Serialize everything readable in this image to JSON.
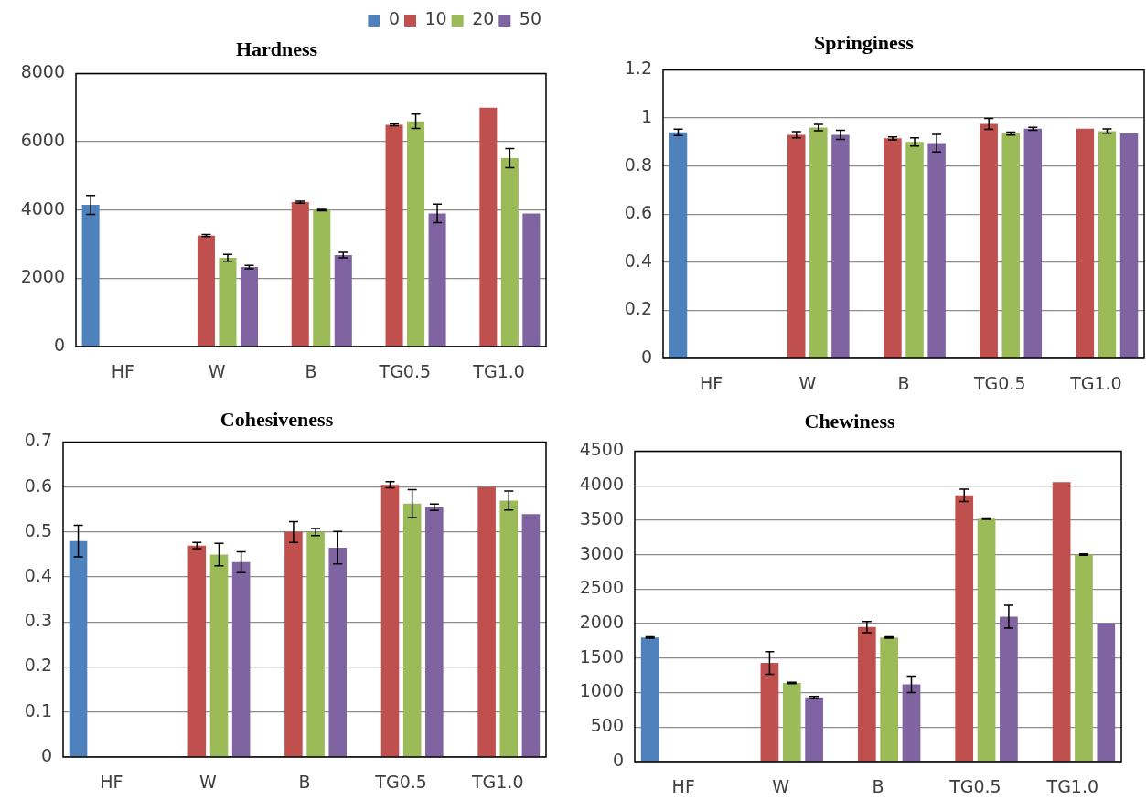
{
  "chart_data": [
    {
      "type": "bar",
      "title": "Hardness",
      "categories": [
        "HF",
        "W",
        "B",
        "TG0.5",
        "TG1.0"
      ],
      "series": [
        {
          "name": "0",
          "color": "#4f81bd",
          "values": [
            4150,
            null,
            null,
            null,
            null
          ],
          "errors": [
            280,
            null,
            null,
            null,
            null
          ]
        },
        {
          "name": "10",
          "color": "#c0504d",
          "values": [
            null,
            3250,
            4230,
            6500,
            7000
          ],
          "errors": [
            null,
            30,
            30,
            30,
            null
          ]
        },
        {
          "name": "20",
          "color": "#9bbb59",
          "values": [
            null,
            2600,
            4000,
            6600,
            5520
          ],
          "errors": [
            null,
            100,
            20,
            210,
            280
          ]
        },
        {
          "name": "50",
          "color": "#8064a2",
          "values": [
            null,
            2330,
            2680,
            3900,
            3900
          ],
          "errors": [
            null,
            50,
            80,
            270,
            null
          ]
        }
      ],
      "ylim": [
        0,
        8000
      ],
      "yticks": [
        0,
        2000,
        4000,
        6000,
        8000
      ],
      "grid": "y",
      "legend": "top right"
    },
    {
      "type": "bar",
      "title": "Springiness",
      "categories": [
        "HF",
        "W",
        "B",
        "TG0.5",
        "TG1.0"
      ],
      "series": [
        {
          "color": "#4f81bd",
          "values": [
            0.94,
            null,
            null,
            null,
            null
          ],
          "errors": [
            0.013,
            null,
            null,
            null,
            null
          ]
        },
        {
          "color": "#c0504d",
          "values": [
            null,
            0.93,
            0.915,
            0.975,
            0.955
          ],
          "errors": [
            null,
            0.013,
            0.006,
            0.023,
            null
          ]
        },
        {
          "color": "#9bbb59",
          "values": [
            null,
            0.96,
            0.9,
            0.935,
            0.945
          ],
          "errors": [
            null,
            0.013,
            0.017,
            0.006,
            0.009
          ]
        },
        {
          "color": "#8064a2",
          "values": [
            null,
            0.93,
            0.895,
            0.955,
            0.935
          ],
          "errors": [
            null,
            0.019,
            0.037,
            0.006,
            null
          ]
        }
      ],
      "ylim": [
        0,
        1.2
      ],
      "yticks": [
        0,
        0.2,
        0.4,
        0.6,
        0.8,
        1,
        1.2
      ],
      "grid": "y"
    },
    {
      "type": "bar",
      "title": "Cohesiveness",
      "categories": [
        "HF",
        "W",
        "B",
        "TG0.5",
        "TG1.0"
      ],
      "series": [
        {
          "color": "#4f81bd",
          "values": [
            0.48,
            null,
            null,
            null,
            null
          ],
          "errors": [
            0.035,
            null,
            null,
            null,
            null
          ]
        },
        {
          "color": "#c0504d",
          "values": [
            null,
            0.47,
            0.5,
            0.605,
            0.6
          ],
          "errors": [
            null,
            0.007,
            0.023,
            0.007,
            null
          ]
        },
        {
          "color": "#9bbb59",
          "values": [
            null,
            0.45,
            0.5,
            0.563,
            0.57
          ],
          "errors": [
            null,
            0.025,
            0.008,
            0.031,
            0.021
          ]
        },
        {
          "color": "#8064a2",
          "values": [
            null,
            0.433,
            0.465,
            0.555,
            0.54
          ],
          "errors": [
            null,
            0.023,
            0.036,
            0.007,
            null
          ]
        }
      ],
      "ylim": [
        0,
        0.7
      ],
      "yticks": [
        0,
        0.1,
        0.2,
        0.3,
        0.4,
        0.5,
        0.6,
        0.7
      ],
      "grid": "y"
    },
    {
      "type": "bar",
      "title": "Chewiness",
      "categories": [
        "HF",
        "W",
        "B",
        "TG0.5",
        "TG1.0"
      ],
      "series": [
        {
          "color": "#4f81bd",
          "values": [
            1800,
            null,
            null,
            null,
            null
          ],
          "errors": [
            10,
            null,
            null,
            null,
            null
          ]
        },
        {
          "color": "#c0504d",
          "values": [
            null,
            1430,
            1950,
            3860,
            4050
          ],
          "errors": [
            null,
            165,
            80,
            90,
            null
          ]
        },
        {
          "color": "#9bbb59",
          "values": [
            null,
            1140,
            1800,
            3520,
            3000
          ],
          "errors": [
            null,
            10,
            10,
            10,
            10
          ]
        },
        {
          "color": "#8064a2",
          "values": [
            null,
            930,
            1120,
            2100,
            2000
          ],
          "errors": [
            null,
            15,
            120,
            165,
            null
          ]
        }
      ],
      "ylim": [
        0,
        4500
      ],
      "yticks": [
        0,
        500,
        1000,
        1500,
        2000,
        2500,
        3000,
        3500,
        4000,
        4500
      ],
      "grid": "y"
    }
  ]
}
